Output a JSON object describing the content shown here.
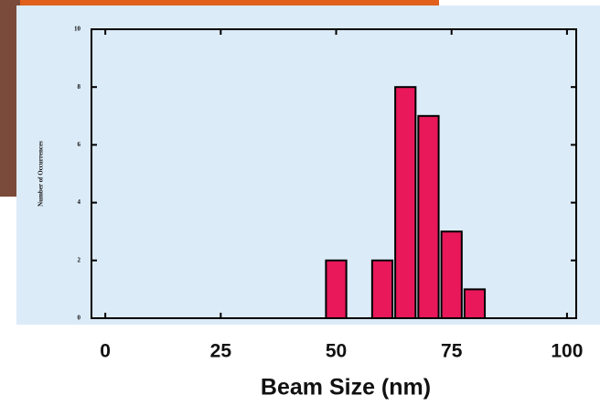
{
  "chart_data": {
    "type": "histogram",
    "x_label": "Beam Size (nm)",
    "y_label": "Number of Occurrences",
    "bins": [
      47.5,
      52.5,
      57.5,
      62.5,
      67.5,
      72.5,
      77.5,
      82.5
    ],
    "values": [
      2,
      0,
      2,
      8,
      7,
      3,
      1
    ],
    "color": "#e8185a",
    "xlim": [
      -3,
      102
    ],
    "xticks": [
      0,
      25,
      50,
      75,
      100
    ],
    "ylim": [
      0,
      10
    ],
    "yticks": [
      0,
      2,
      4,
      6,
      8,
      10
    ]
  }
}
